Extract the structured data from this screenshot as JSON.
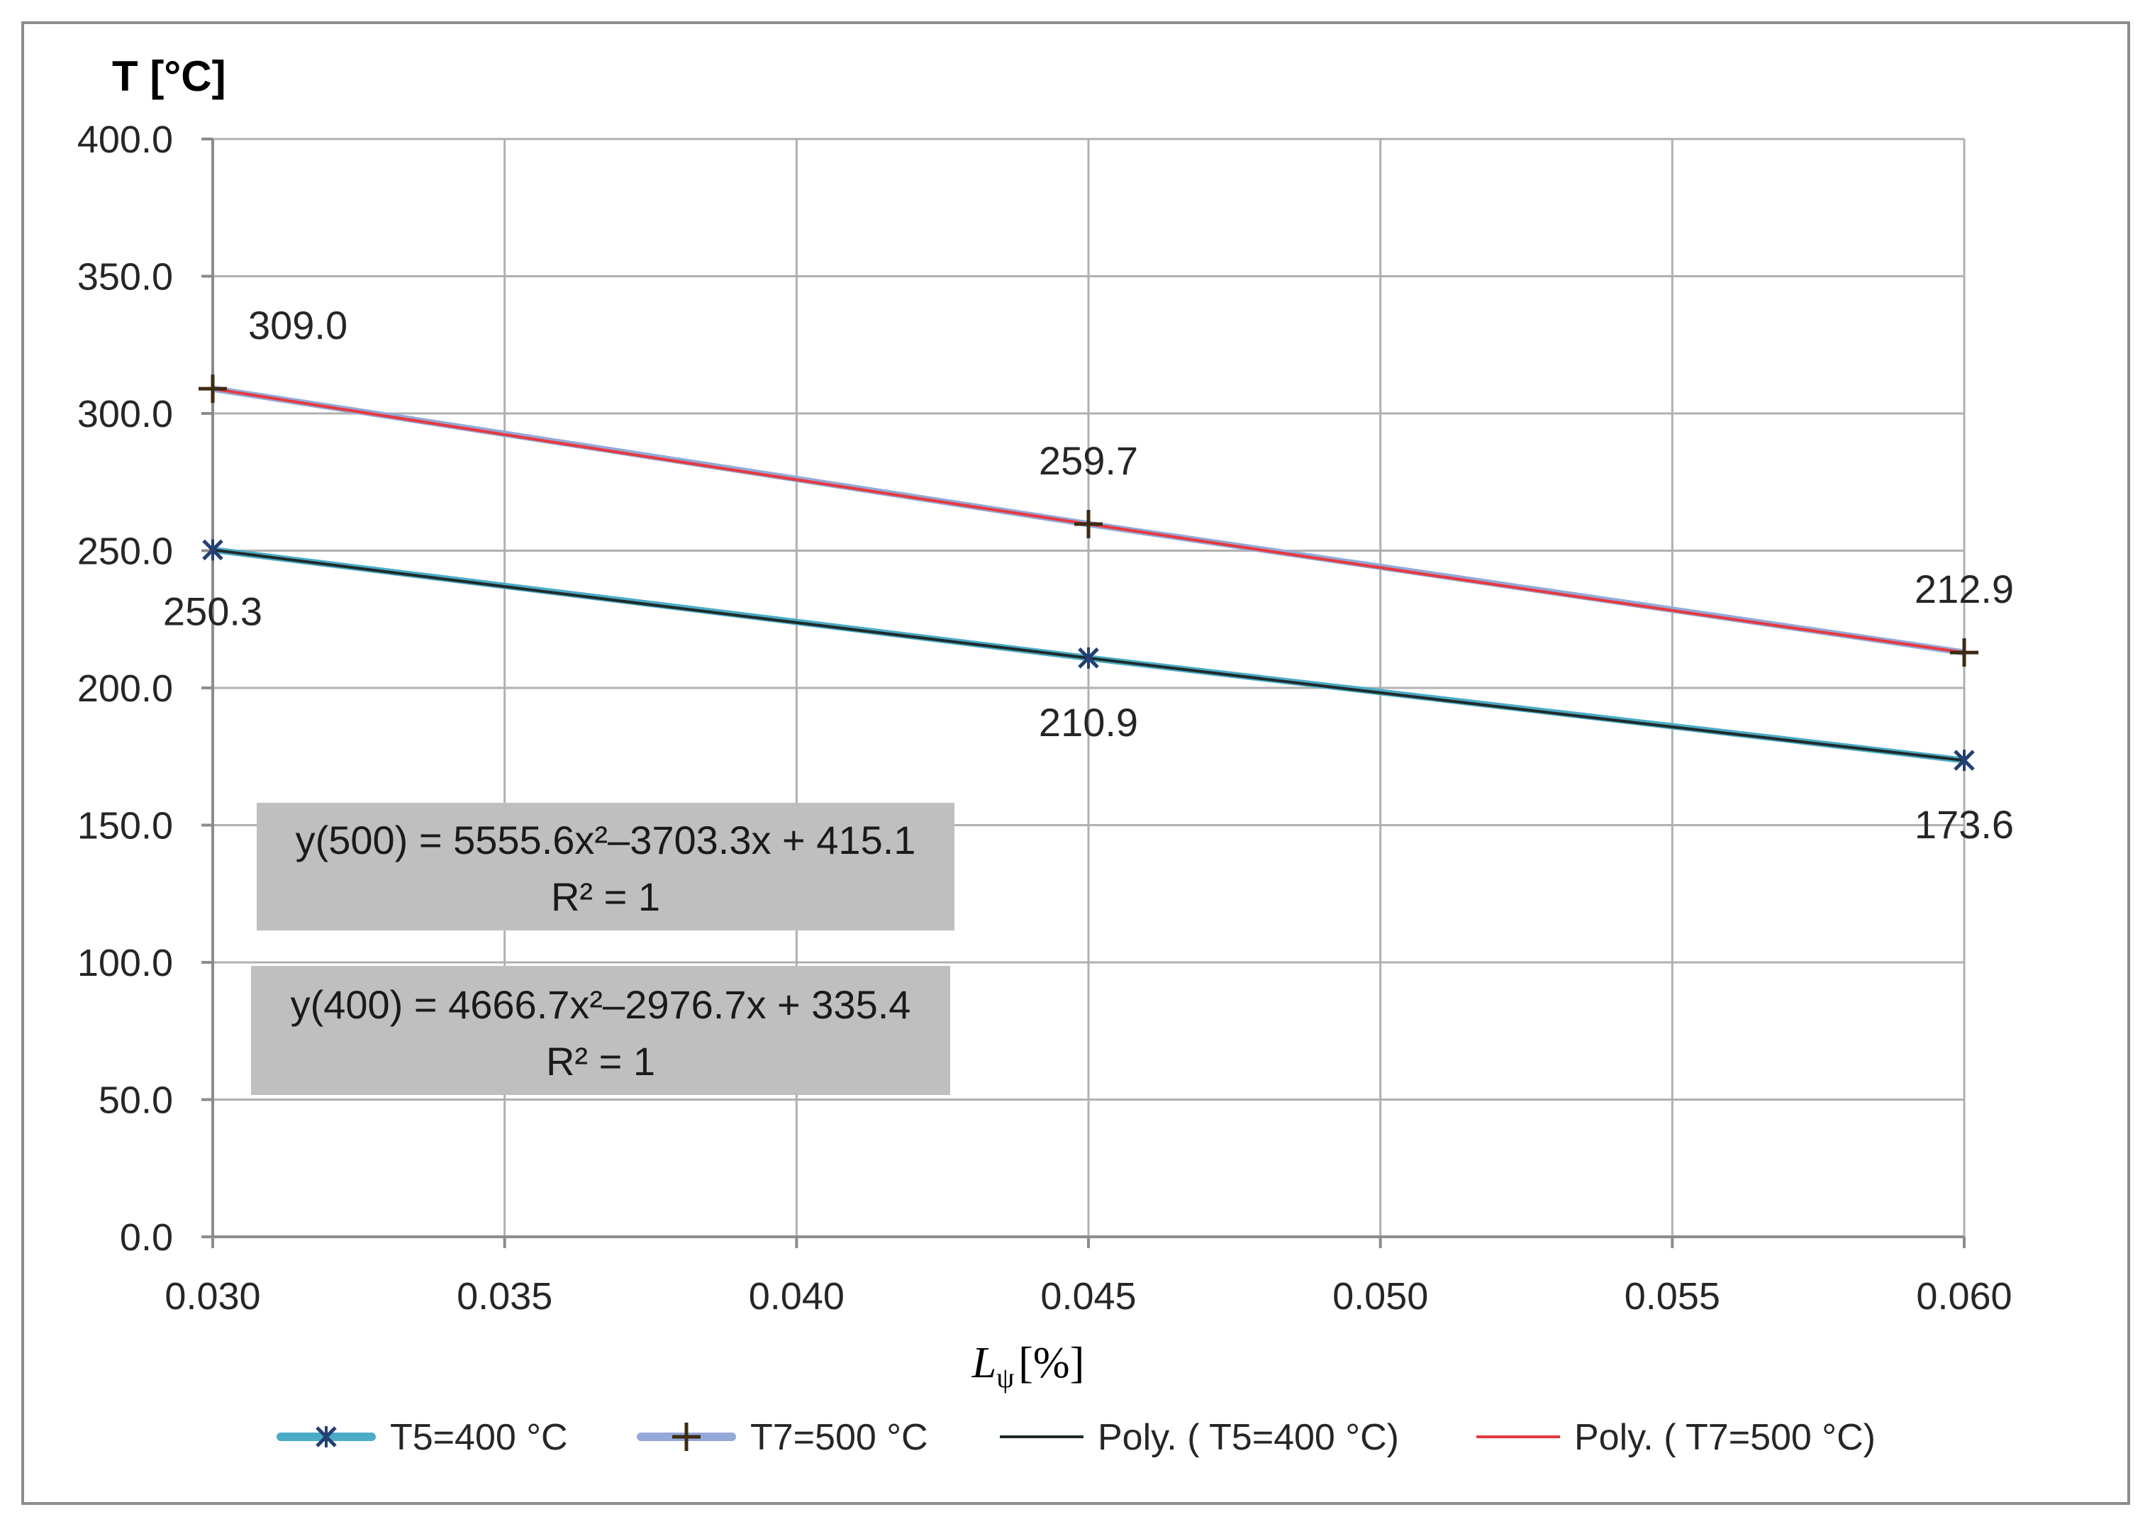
{
  "chart_data": {
    "type": "line",
    "ylabel": "T [°C]",
    "xlabel_main": "L",
    "xlabel_sub": "ψ",
    "xlabel_unit": "[%]",
    "x": [
      0.03,
      0.045,
      0.06
    ],
    "xlim": [
      0.03,
      0.06
    ],
    "ylim": [
      0.0,
      400.0
    ],
    "grid": true,
    "legend_position": "bottom",
    "x_ticks": [
      0.03,
      0.035,
      0.04,
      0.045,
      0.05,
      0.055,
      0.06
    ],
    "x_tick_labels": [
      "0.030",
      "0.035",
      "0.040",
      "0.045",
      "0.050",
      "0.055",
      "0.060"
    ],
    "y_ticks": [
      0,
      50,
      100,
      150,
      200,
      250,
      300,
      350,
      400
    ],
    "y_tick_labels": [
      "0.0",
      "50.0",
      "100.0",
      "150.0",
      "200.0",
      "250.0",
      "300.0",
      "350.0",
      "400.0"
    ],
    "series": [
      {
        "name": "T5=400 °C",
        "values": [
          250.3,
          210.9,
          173.6
        ],
        "labels": [
          "250.3",
          "210.9",
          "173.6"
        ],
        "label_side": [
          "below",
          "below",
          "below"
        ],
        "color": "#4bacc6",
        "marker": "x-star",
        "marker_color": "#243f73"
      },
      {
        "name": "T7=500 °C",
        "values": [
          309.0,
          259.7,
          212.9
        ],
        "labels": [
          "309.0",
          "259.7",
          "212.9"
        ],
        "label_side": [
          "above",
          "above",
          "above"
        ],
        "color": "#93a9d8",
        "marker": "plus",
        "marker_color": "#3d2b12"
      }
    ],
    "trendlines": [
      {
        "name": "Poly. ( T5=400 °C)",
        "of_series": "T5=400 °C",
        "coefficients": [
          4666.7,
          -2976.7,
          335.4
        ],
        "color": "#1f2a2a",
        "equation": "y(400) = 4666.7x²–2976.7x + 335.4",
        "r2": "R² = 1"
      },
      {
        "name": "Poly. ( T7=500 °C)",
        "of_series": "T7=500 °C",
        "coefficients": [
          5555.6,
          -3703.3,
          415.1
        ],
        "color": "#e8383d",
        "equation": "y(500) = 5555.6x²–3703.3x + 415.1",
        "r2": "R² = 1"
      }
    ],
    "equation_box_color": "#bfbfbf",
    "axis_color": "#8c8c8c",
    "grid_color": "#b0b0b0"
  }
}
